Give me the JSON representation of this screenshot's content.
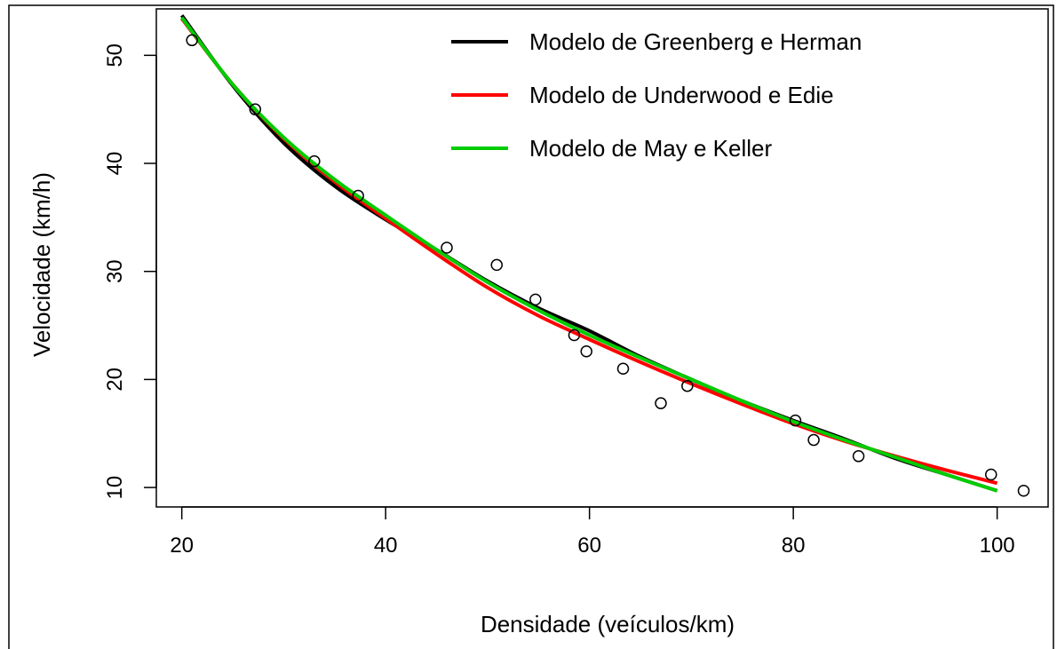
{
  "chart_data": {
    "type": "scatter",
    "xlabel": "Densidade (veículos/km)",
    "ylabel": "Velocidade (km/h)",
    "xlim": [
      17.5,
      105
    ],
    "ylim": [
      8.2,
      54.3
    ],
    "xticks": [
      20,
      40,
      60,
      80,
      100
    ],
    "yticks": [
      10,
      20,
      30,
      40,
      50
    ],
    "grid": false,
    "legend_position": "top-right",
    "observations": {
      "x": [
        21.0,
        27.2,
        33.0,
        37.3,
        46.0,
        50.9,
        54.7,
        58.5,
        59.7,
        63.3,
        67.0,
        69.6,
        80.2,
        82.0,
        86.4,
        99.4,
        102.6
      ],
      "y": [
        51.4,
        45.0,
        40.2,
        37.0,
        32.2,
        30.6,
        27.4,
        24.1,
        22.6,
        21.0,
        17.8,
        19.4,
        16.2,
        14.4,
        12.9,
        11.2,
        9.7
      ]
    },
    "series": [
      {
        "name": "Modelo de Greenberg e Herman",
        "color": "#000000",
        "x": [
          20,
          25,
          30,
          35,
          40,
          45,
          50,
          55,
          60,
          65,
          70,
          75,
          80,
          85,
          90,
          95,
          100
        ],
        "y": [
          53.7,
          47.2,
          41.9,
          37.9,
          34.8,
          32.0,
          29.1,
          26.6,
          24.5,
          22.1,
          20.0,
          18.0,
          16.2,
          14.5,
          12.7,
          11.2,
          9.7
        ]
      },
      {
        "name": "Modelo de Underwood e Edie",
        "color": "#ff0000",
        "x": [
          20,
          25,
          30,
          35,
          40,
          45,
          50,
          55,
          60,
          65,
          70,
          75,
          80,
          85,
          90,
          95,
          100
        ],
        "y": [
          53.4,
          47.3,
          42.3,
          38.3,
          34.9,
          31.6,
          28.5,
          25.9,
          23.7,
          21.6,
          19.6,
          17.7,
          15.9,
          14.3,
          12.9,
          11.6,
          10.4
        ]
      },
      {
        "name": "Modelo de May e Keller",
        "color": "#00cc00",
        "x": [
          20,
          25,
          30,
          35,
          40,
          45,
          50,
          55,
          60,
          65,
          70,
          75,
          80,
          85,
          90,
          95,
          100
        ],
        "y": [
          53.5,
          47.3,
          42.4,
          38.5,
          35.2,
          32.0,
          29.0,
          26.4,
          24.1,
          22.0,
          20.0,
          18.0,
          16.1,
          14.4,
          12.8,
          11.2,
          9.7
        ]
      }
    ]
  }
}
